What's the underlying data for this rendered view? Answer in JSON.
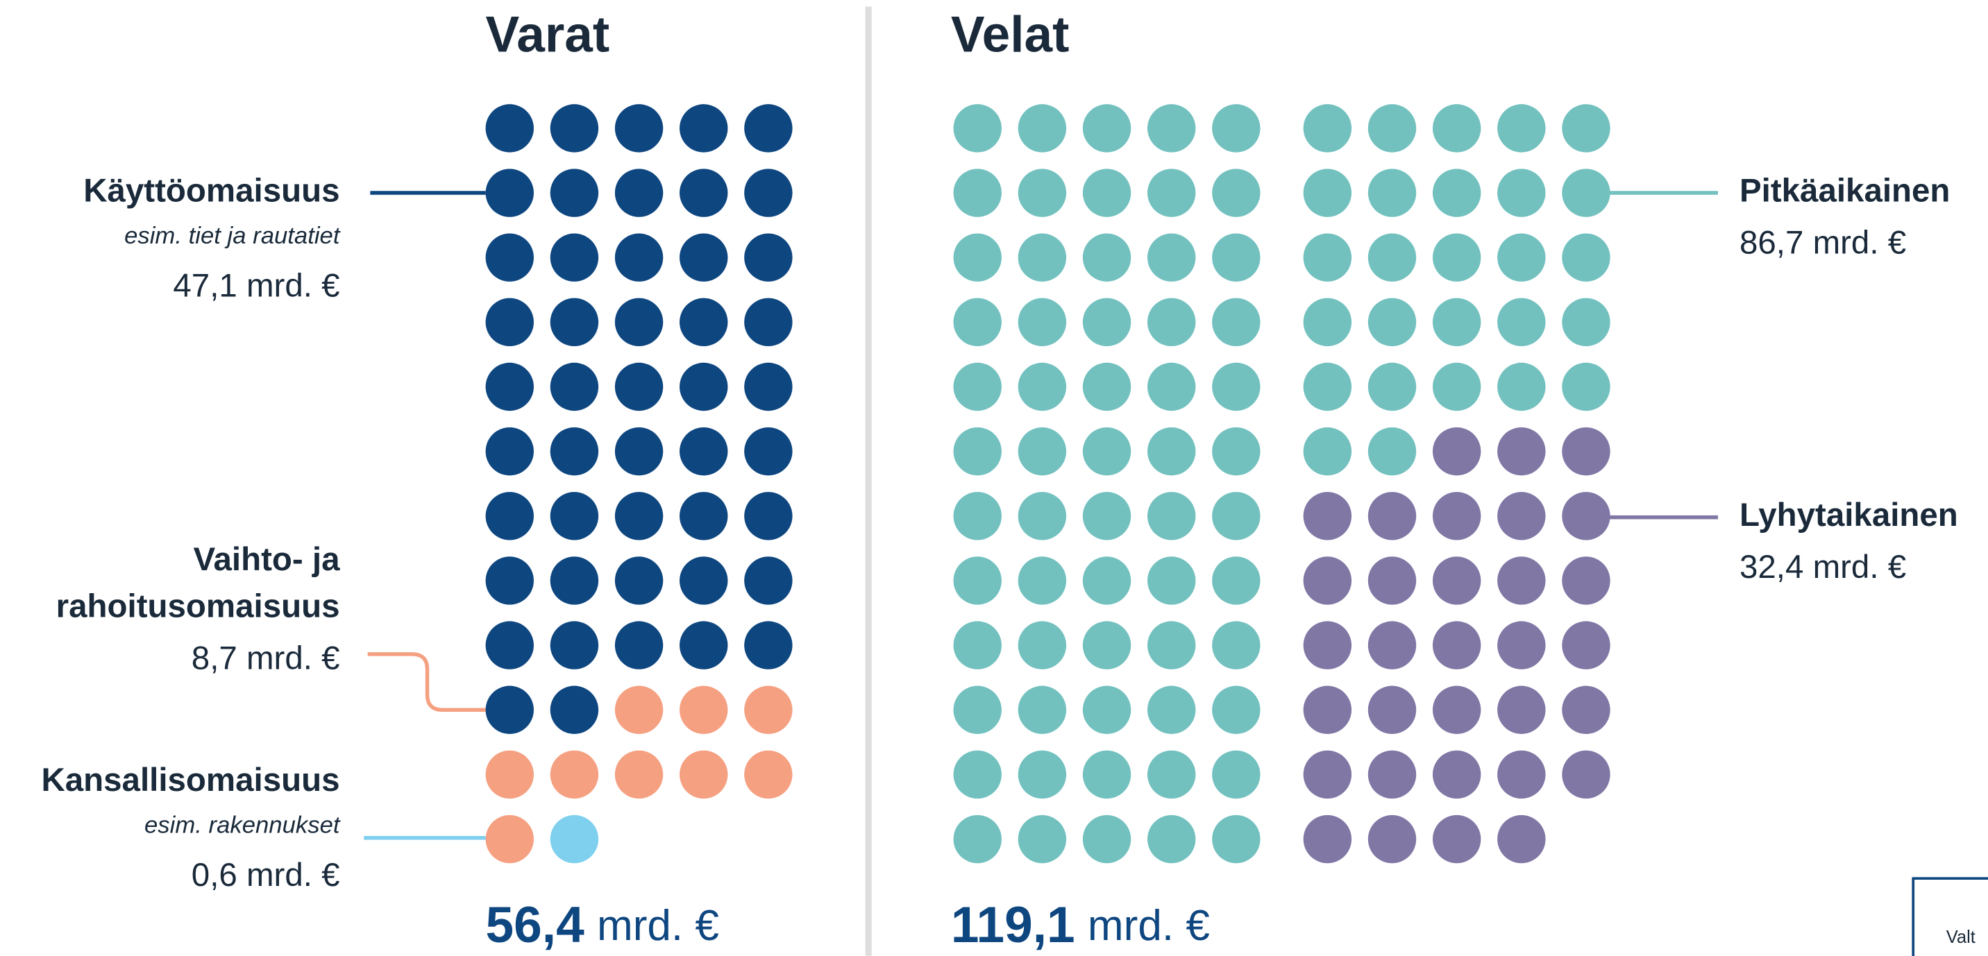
{
  "chart_data": {
    "type": "dot",
    "panels": [
      {
        "title": "Varat",
        "total": 56.4,
        "total_label": "56,4",
        "unit": "mrd. €",
        "series": [
          {
            "name": [
              "Käyttöomaisuus"
            ],
            "note": "esim. tiet ja rautatiet",
            "color": "#0e4680",
            "value": 47.1,
            "value_label": "47,1 mrd. €"
          },
          {
            "name": [
              "Vaihto- ja",
              "rahoitusomaisuus"
            ],
            "color": "#f5a081",
            "value": 8.7,
            "value_label": "8,7 mrd. €"
          },
          {
            "name": [
              "Kansallisomaisuus"
            ],
            "note": "esim. rakennukset",
            "color": "#7fd0ef",
            "value": 0.6,
            "value_label": "0,6 mrd. €"
          }
        ]
      },
      {
        "title": "Velat",
        "total": 119.1,
        "total_label": "119,1",
        "unit": "mrd. €",
        "series": [
          {
            "name": [
              "Pitkäaikainen"
            ],
            "color": "#72c1bf",
            "value": 86.7,
            "value_label": "86,7 mrd. €"
          },
          {
            "name": [
              "Lyhytaikainen"
            ],
            "color": "#8077a5",
            "value": 32.4,
            "value_label": "32,4 mrd. €"
          }
        ]
      }
    ],
    "corner_text": "Valt"
  }
}
